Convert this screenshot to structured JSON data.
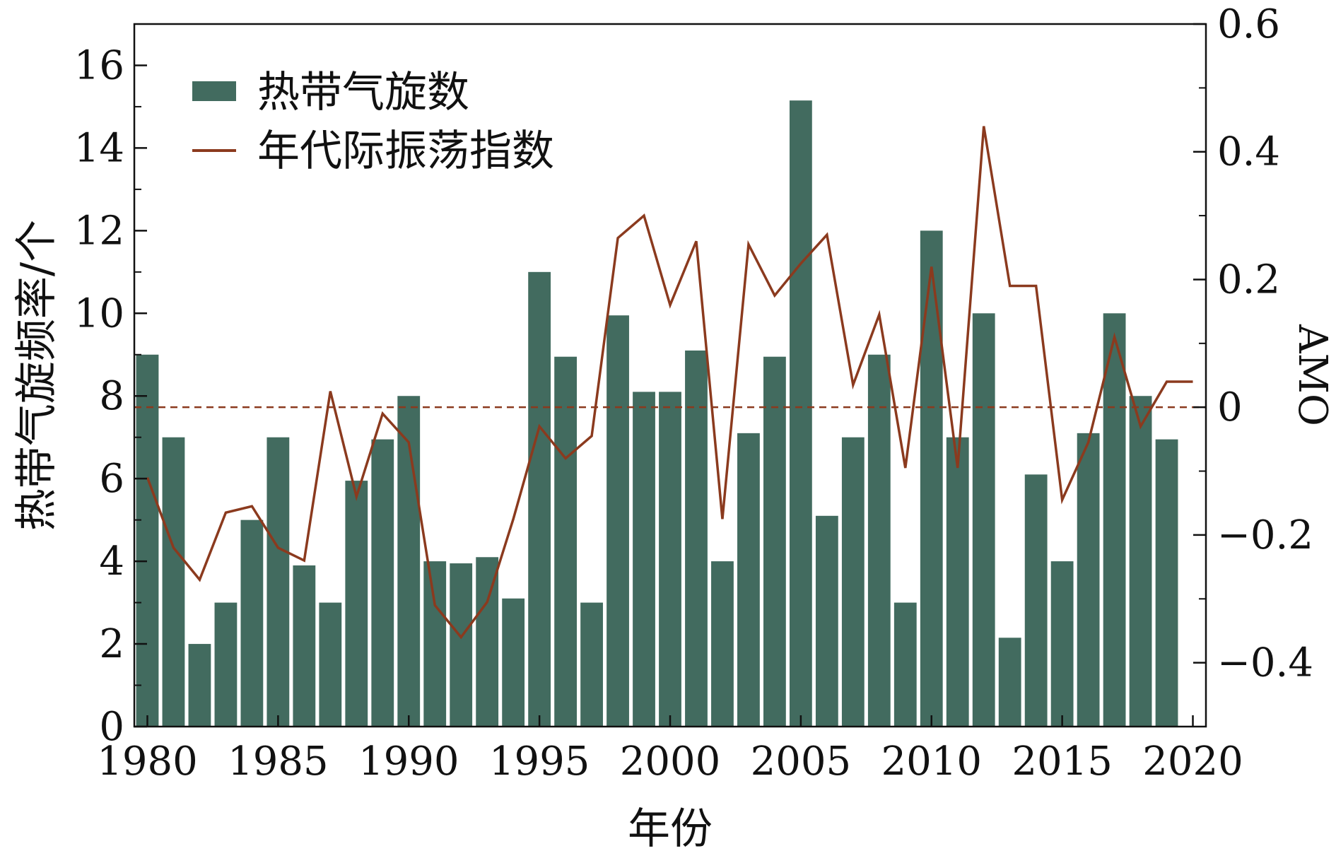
{
  "chart_data": {
    "type": "bar",
    "xlabel": "年份",
    "ylabel": "热带气旋频率/个",
    "y2label": "AMO",
    "ylim": [
      0,
      17
    ],
    "y2lim": [
      -0.5,
      0.6
    ],
    "yticks": [
      0,
      2,
      4,
      6,
      8,
      10,
      12,
      14,
      16
    ],
    "y2ticks": [
      {
        "value": -0.4,
        "label": "−0.4"
      },
      {
        "value": -0.2,
        "label": "−0.2"
      },
      {
        "value": 0,
        "label": "0"
      },
      {
        "value": 0.2,
        "label": "0.2"
      },
      {
        "value": 0.4,
        "label": "0.4"
      },
      {
        "value": 0.6,
        "label": "0.6"
      }
    ],
    "xticks": [
      1980,
      1985,
      1990,
      1995,
      2000,
      2005,
      2010,
      2015,
      2020
    ],
    "xlim": [
      1979.5,
      2020.5
    ],
    "legend_position": "top-left",
    "colors": {
      "bars": "#426b5f",
      "line": "#8b3a1e",
      "zero_line": "#8b3a1e"
    },
    "series": [
      {
        "name": "热带气旋数",
        "type": "bar",
        "axis": "left",
        "x": [
          1980,
          1981,
          1982,
          1983,
          1984,
          1985,
          1986,
          1987,
          1988,
          1989,
          1990,
          1991,
          1992,
          1993,
          1994,
          1995,
          1996,
          1997,
          1998,
          1999,
          2000,
          2001,
          2002,
          2003,
          2004,
          2005,
          2006,
          2007,
          2008,
          2009,
          2010,
          2011,
          2012,
          2013,
          2014,
          2015,
          2016,
          2017,
          2018,
          2019
        ],
        "values": [
          9,
          7,
          2,
          3,
          5,
          7,
          3.9,
          3,
          5.95,
          6.95,
          8,
          4,
          3.95,
          4.1,
          3.1,
          11,
          8.95,
          3,
          9.95,
          8.1,
          8.1,
          9.1,
          4,
          7.1,
          8.95,
          15.15,
          5.1,
          7,
          9,
          3,
          12,
          7,
          10,
          2.15,
          6.1,
          4,
          7.1,
          10,
          8,
          6.95
        ]
      },
      {
        "name": "年代际振荡指数",
        "type": "line",
        "axis": "right",
        "x": [
          1980,
          1981,
          1982,
          1983,
          1984,
          1985,
          1986,
          1987,
          1988,
          1989,
          1990,
          1991,
          1992,
          1993,
          1994,
          1995,
          1996,
          1997,
          1998,
          1999,
          2000,
          2001,
          2002,
          2003,
          2004,
          2005,
          2006,
          2007,
          2008,
          2009,
          2010,
          2011,
          2012,
          2013,
          2014,
          2015,
          2016,
          2017,
          2018,
          2019,
          2020
        ],
        "values": [
          -0.11,
          -0.22,
          -0.27,
          -0.165,
          -0.155,
          -0.22,
          -0.24,
          0.025,
          -0.14,
          -0.01,
          -0.055,
          -0.31,
          -0.36,
          -0.305,
          -0.175,
          -0.03,
          -0.08,
          -0.045,
          0.265,
          0.3,
          0.16,
          0.26,
          -0.175,
          0.255,
          0.175,
          0.225,
          0.27,
          0.035,
          0.145,
          -0.095,
          0.22,
          -0.095,
          0.44,
          0.19,
          0.19,
          -0.145,
          -0.055,
          0.11,
          -0.03,
          0.04,
          0.04
        ]
      }
    ]
  }
}
